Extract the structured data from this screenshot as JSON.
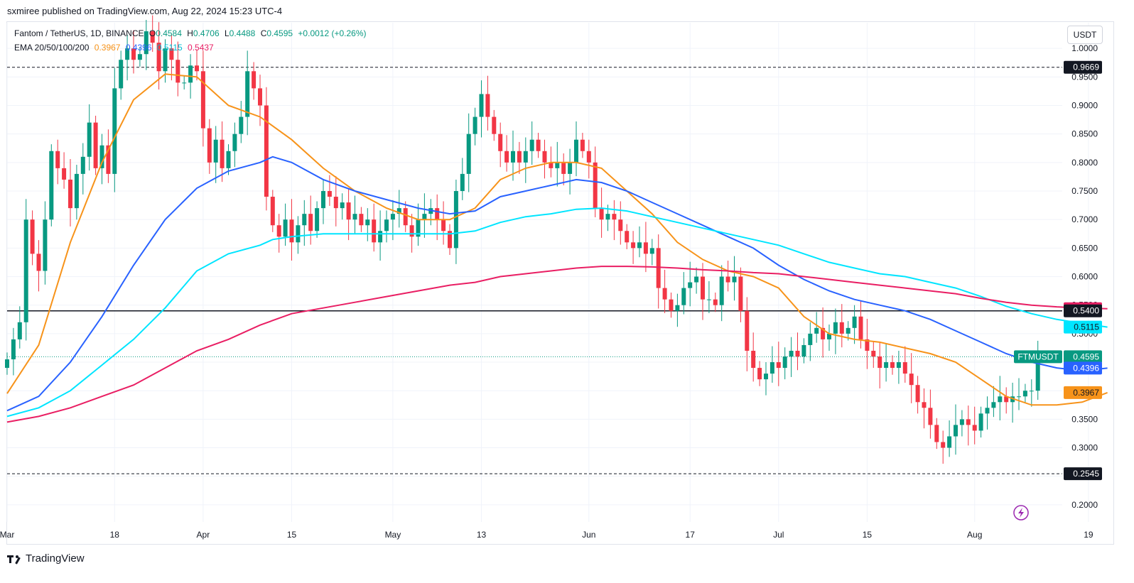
{
  "header": {
    "published": "sxmiree published on TradingView.com, Aug 22, 2024 15:23 UTC-4"
  },
  "legend": {
    "symbol": "Fantom / TetherUS, 1D, BINANCE",
    "o_label": "O",
    "o": "0.4584",
    "h_label": "H",
    "h": "0.4706",
    "l_label": "L",
    "l": "0.4488",
    "c_label": "C",
    "c": "0.4595",
    "change": "+0.0012 (+0.26%)",
    "ema_title": "EMA 20/50/100/200",
    "ema20": "0.3967",
    "ema50": "0.4396",
    "ema100": "0.5115",
    "ema200": "0.5437"
  },
  "unit_button": "USDT",
  "footer": {
    "brand": "TradingView"
  },
  "colors": {
    "up": "#089981",
    "down": "#f23645",
    "ema20": "#f7931a",
    "ema50": "#2962ff",
    "ema100": "#00e5ff",
    "ema200": "#e91e63",
    "grid": "#f0f3fa",
    "text": "#131722"
  },
  "chart_data": {
    "type": "candlestick",
    "title": "Fantom / TetherUS, 1D, BINANCE",
    "x_ticks": [
      "Mar",
      "18",
      "Apr",
      "15",
      "May",
      "13",
      "Jun",
      "17",
      "Jul",
      "15",
      "Aug",
      "19"
    ],
    "x_tick_days": [
      0,
      17,
      31,
      45,
      61,
      75,
      92,
      108,
      122,
      136,
      153,
      171
    ],
    "y_ticks": [
      "1.0000",
      "0.9500",
      "0.9000",
      "0.8500",
      "0.8000",
      "0.7500",
      "0.7000",
      "0.6500",
      "0.6000",
      "0.5500",
      "0.5000",
      "0.4500",
      "0.4000",
      "0.3500",
      "0.3000",
      "0.2500",
      "0.2000"
    ],
    "ylim": [
      0.17,
      1.045
    ],
    "closes": [
      0.455,
      0.49,
      0.52,
      0.7,
      0.64,
      0.61,
      0.7,
      0.82,
      0.79,
      0.77,
      0.72,
      0.78,
      0.81,
      0.87,
      0.79,
      0.83,
      0.78,
      0.93,
      0.98,
      1.0,
      0.98,
      0.99,
      1.03,
      1.01,
      0.96,
      1.0,
      0.98,
      0.94,
      0.94,
      0.97,
      0.96,
      0.86,
      0.8,
      0.84,
      0.79,
      0.82,
      0.85,
      0.88,
      0.96,
      0.93,
      0.9,
      0.74,
      0.69,
      0.67,
      0.7,
      0.66,
      0.69,
      0.71,
      0.68,
      0.72,
      0.75,
      0.74,
      0.72,
      0.73,
      0.7,
      0.71,
      0.69,
      0.7,
      0.66,
      0.68,
      0.7,
      0.71,
      0.72,
      0.69,
      0.67,
      0.7,
      0.71,
      0.72,
      0.7,
      0.68,
      0.65,
      0.75,
      0.78,
      0.85,
      0.88,
      0.92,
      0.88,
      0.85,
      0.82,
      0.8,
      0.82,
      0.8,
      0.82,
      0.84,
      0.82,
      0.8,
      0.79,
      0.8,
      0.78,
      0.8,
      0.84,
      0.82,
      0.8,
      0.72,
      0.7,
      0.71,
      0.7,
      0.68,
      0.66,
      0.65,
      0.66,
      0.64,
      0.65,
      0.58,
      0.56,
      0.54,
      0.55,
      0.58,
      0.59,
      0.6,
      0.56,
      0.56,
      0.55,
      0.6,
      0.59,
      0.6,
      0.54,
      0.47,
      0.44,
      0.42,
      0.43,
      0.45,
      0.44,
      0.46,
      0.47,
      0.46,
      0.48,
      0.5,
      0.51,
      0.49,
      0.5,
      0.52,
      0.5,
      0.51,
      0.53,
      0.49,
      0.47,
      0.46,
      0.44,
      0.45,
      0.44,
      0.45,
      0.43,
      0.41,
      0.38,
      0.37,
      0.34,
      0.31,
      0.3,
      0.32,
      0.34,
      0.35,
      0.34,
      0.33,
      0.36,
      0.37,
      0.38,
      0.39,
      0.38,
      0.39,
      0.39,
      0.4,
      0.4,
      0.4595
    ],
    "series": [
      {
        "name": "EMA 20",
        "value": 0.3967,
        "points": [
          [
            0,
            0.395
          ],
          [
            5,
            0.48
          ],
          [
            10,
            0.66
          ],
          [
            15,
            0.8
          ],
          [
            20,
            0.91
          ],
          [
            25,
            0.955
          ],
          [
            30,
            0.95
          ],
          [
            35,
            0.9
          ],
          [
            40,
            0.88
          ],
          [
            45,
            0.84
          ],
          [
            50,
            0.79
          ],
          [
            55,
            0.75
          ],
          [
            60,
            0.72
          ],
          [
            65,
            0.7
          ],
          [
            70,
            0.7
          ],
          [
            74,
            0.72
          ],
          [
            78,
            0.77
          ],
          [
            82,
            0.79
          ],
          [
            86,
            0.8
          ],
          [
            90,
            0.8
          ],
          [
            94,
            0.79
          ],
          [
            98,
            0.75
          ],
          [
            102,
            0.71
          ],
          [
            106,
            0.66
          ],
          [
            110,
            0.63
          ],
          [
            114,
            0.61
          ],
          [
            118,
            0.6
          ],
          [
            122,
            0.58
          ],
          [
            126,
            0.53
          ],
          [
            130,
            0.5
          ],
          [
            134,
            0.49
          ],
          [
            138,
            0.485
          ],
          [
            142,
            0.475
          ],
          [
            146,
            0.465
          ],
          [
            150,
            0.45
          ],
          [
            154,
            0.42
          ],
          [
            158,
            0.39
          ],
          [
            162,
            0.375
          ],
          [
            166,
            0.375
          ],
          [
            170,
            0.38
          ],
          [
            174,
            0.3967
          ]
        ]
      },
      {
        "name": "EMA 50",
        "value": 0.4396,
        "points": [
          [
            0,
            0.365
          ],
          [
            5,
            0.39
          ],
          [
            10,
            0.45
          ],
          [
            15,
            0.53
          ],
          [
            20,
            0.62
          ],
          [
            25,
            0.7
          ],
          [
            30,
            0.755
          ],
          [
            35,
            0.785
          ],
          [
            40,
            0.8
          ],
          [
            42,
            0.81
          ],
          [
            45,
            0.8
          ],
          [
            50,
            0.77
          ],
          [
            55,
            0.75
          ],
          [
            60,
            0.735
          ],
          [
            65,
            0.72
          ],
          [
            70,
            0.71
          ],
          [
            74,
            0.715
          ],
          [
            78,
            0.74
          ],
          [
            82,
            0.75
          ],
          [
            86,
            0.76
          ],
          [
            90,
            0.77
          ],
          [
            94,
            0.765
          ],
          [
            98,
            0.75
          ],
          [
            102,
            0.73
          ],
          [
            106,
            0.71
          ],
          [
            110,
            0.69
          ],
          [
            114,
            0.67
          ],
          [
            118,
            0.65
          ],
          [
            122,
            0.62
          ],
          [
            126,
            0.595
          ],
          [
            130,
            0.575
          ],
          [
            134,
            0.56
          ],
          [
            138,
            0.55
          ],
          [
            142,
            0.54
          ],
          [
            146,
            0.525
          ],
          [
            150,
            0.505
          ],
          [
            154,
            0.485
          ],
          [
            158,
            0.465
          ],
          [
            162,
            0.45
          ],
          [
            166,
            0.44
          ],
          [
            170,
            0.435
          ],
          [
            174,
            0.4396
          ]
        ]
      },
      {
        "name": "EMA 100",
        "value": 0.5115,
        "points": [
          [
            0,
            0.355
          ],
          [
            5,
            0.37
          ],
          [
            10,
            0.4
          ],
          [
            15,
            0.445
          ],
          [
            20,
            0.49
          ],
          [
            25,
            0.545
          ],
          [
            30,
            0.61
          ],
          [
            35,
            0.64
          ],
          [
            40,
            0.655
          ],
          [
            42,
            0.665
          ],
          [
            45,
            0.67
          ],
          [
            50,
            0.675
          ],
          [
            55,
            0.675
          ],
          [
            60,
            0.675
          ],
          [
            65,
            0.675
          ],
          [
            70,
            0.675
          ],
          [
            74,
            0.68
          ],
          [
            78,
            0.695
          ],
          [
            82,
            0.705
          ],
          [
            86,
            0.71
          ],
          [
            90,
            0.718
          ],
          [
            94,
            0.72
          ],
          [
            98,
            0.715
          ],
          [
            102,
            0.705
          ],
          [
            106,
            0.695
          ],
          [
            110,
            0.685
          ],
          [
            114,
            0.675
          ],
          [
            118,
            0.665
          ],
          [
            122,
            0.655
          ],
          [
            126,
            0.64
          ],
          [
            130,
            0.625
          ],
          [
            134,
            0.615
          ],
          [
            138,
            0.605
          ],
          [
            142,
            0.6
          ],
          [
            146,
            0.59
          ],
          [
            150,
            0.58
          ],
          [
            154,
            0.565
          ],
          [
            158,
            0.548
          ],
          [
            162,
            0.535
          ],
          [
            166,
            0.525
          ],
          [
            170,
            0.518
          ],
          [
            174,
            0.5115
          ]
        ]
      },
      {
        "name": "EMA 200",
        "value": 0.5437,
        "points": [
          [
            0,
            0.345
          ],
          [
            5,
            0.355
          ],
          [
            10,
            0.37
          ],
          [
            15,
            0.39
          ],
          [
            20,
            0.41
          ],
          [
            25,
            0.44
          ],
          [
            30,
            0.47
          ],
          [
            35,
            0.49
          ],
          [
            40,
            0.515
          ],
          [
            45,
            0.535
          ],
          [
            50,
            0.545
          ],
          [
            55,
            0.555
          ],
          [
            60,
            0.565
          ],
          [
            65,
            0.575
          ],
          [
            70,
            0.585
          ],
          [
            74,
            0.59
          ],
          [
            78,
            0.6
          ],
          [
            82,
            0.605
          ],
          [
            86,
            0.61
          ],
          [
            90,
            0.615
          ],
          [
            94,
            0.618
          ],
          [
            98,
            0.618
          ],
          [
            102,
            0.617
          ],
          [
            106,
            0.615
          ],
          [
            110,
            0.612
          ],
          [
            114,
            0.61
          ],
          [
            118,
            0.607
          ],
          [
            122,
            0.605
          ],
          [
            126,
            0.6
          ],
          [
            130,
            0.595
          ],
          [
            134,
            0.59
          ],
          [
            138,
            0.585
          ],
          [
            142,
            0.58
          ],
          [
            146,
            0.575
          ],
          [
            150,
            0.57
          ],
          [
            154,
            0.562
          ],
          [
            158,
            0.555
          ],
          [
            162,
            0.55
          ],
          [
            166,
            0.547
          ],
          [
            170,
            0.545
          ],
          [
            174,
            0.5437
          ]
        ]
      }
    ],
    "horizontal_lines": [
      {
        "value": 0.9669,
        "style": "dashed"
      },
      {
        "value": 0.54,
        "style": "solid"
      },
      {
        "value": 0.4595,
        "style": "dotted"
      },
      {
        "value": 0.2545,
        "style": "dashed"
      }
    ],
    "price_labels": [
      {
        "text": "0.9669",
        "value": 0.9669,
        "bg": "#131722",
        "fg": "#ffffff"
      },
      {
        "text": "0.5437",
        "value": 0.5437,
        "bg": "#e91e63",
        "fg": "#ffffff"
      },
      {
        "text": "0.5400",
        "value": 0.54,
        "bg": "#131722",
        "fg": "#ffffff"
      },
      {
        "text": "0.5115",
        "value": 0.5115,
        "bg": "#00e5ff",
        "fg": "#131722"
      },
      {
        "text": "0.4595",
        "value": 0.4595,
        "bg": "#089981",
        "fg": "#ffffff",
        "tag": "FTMUSDT"
      },
      {
        "text": "0.4396",
        "value": 0.4396,
        "bg": "#2962ff",
        "fg": "#ffffff"
      },
      {
        "text": "0.3967",
        "value": 0.3967,
        "bg": "#f7931a",
        "fg": "#131722"
      },
      {
        "text": "0.2545",
        "value": 0.2545,
        "bg": "#131722",
        "fg": "#ffffff"
      }
    ],
    "grid": true
  }
}
